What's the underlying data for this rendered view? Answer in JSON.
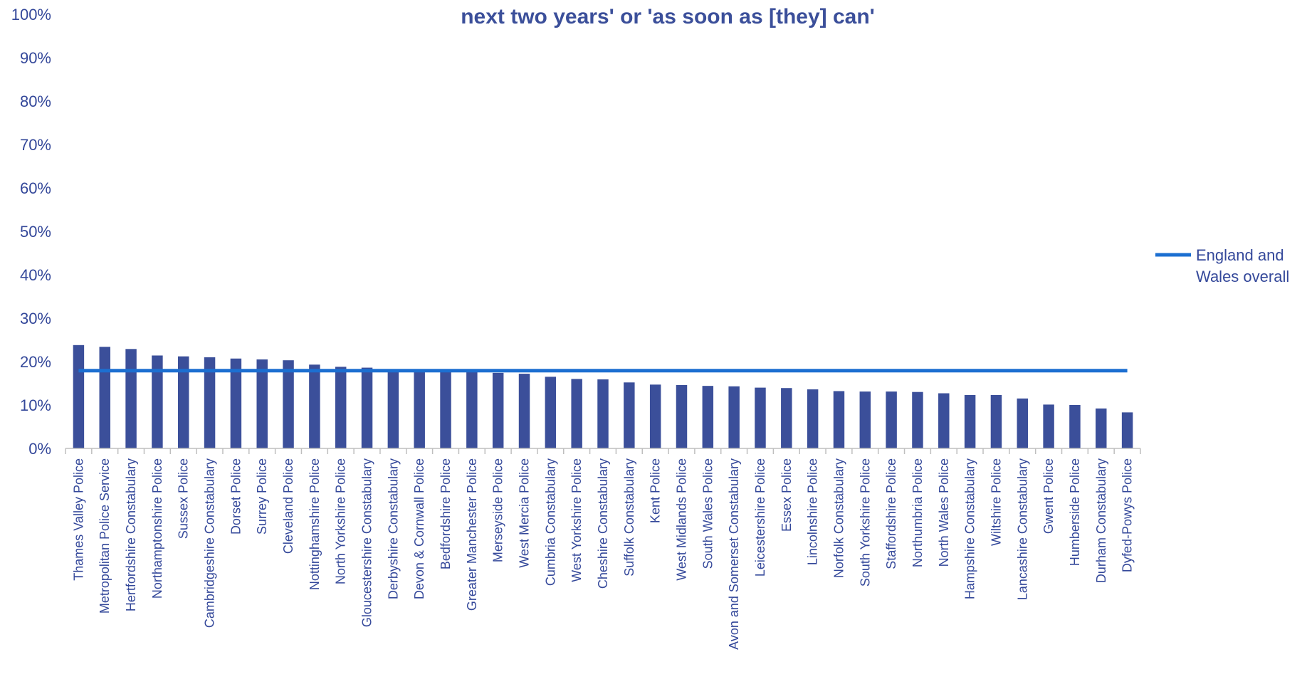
{
  "chart_data": {
    "type": "bar",
    "title": "next two years' or 'as soon as [they] can'",
    "xlabel": "",
    "ylabel": "",
    "ylim": [
      0,
      100
    ],
    "y_ticks": [
      "0%",
      "10%",
      "20%",
      "30%",
      "40%",
      "50%",
      "60%",
      "70%",
      "80%",
      "90%",
      "100%"
    ],
    "categories": [
      "Thames Valley Police",
      "Metropolitan Police Service",
      "Hertfordshire Constabulary",
      "Northamptonshire Police",
      "Sussex Police",
      "Cambridgeshire Constabulary",
      "Dorset Police",
      "Surrey Police",
      "Cleveland Police",
      "Nottinghamshire Police",
      "North Yorkshire Police",
      "Gloucestershire Constabulary",
      "Derbyshire Constabulary",
      "Devon & Cornwall Police",
      "Bedfordshire Police",
      "Greater Manchester Police",
      "Merseyside Police",
      "West Mercia Police",
      "Cumbria Constabulary",
      "West Yorkshire Police",
      "Cheshire Constabulary",
      "Suffolk Constabulary",
      "Kent Police",
      "West Midlands Police",
      "South Wales Police",
      "Avon and Somerset Constabulary",
      "Leicestershire Police",
      "Essex Police",
      "Lincolnshire Police",
      "Norfolk Constabulary",
      "South Yorkshire Police",
      "Staffordshire Police",
      "Northumbria Police",
      "North Wales Police",
      "Hampshire Constabulary",
      "Wiltshire Police",
      "Lancashire Constabulary",
      "Gwent Police",
      "Humberside Police",
      "Durham Constabulary",
      "Dyfed-Powys Police"
    ],
    "values": [
      23.8,
      23.4,
      22.9,
      21.4,
      21.2,
      21.0,
      20.7,
      20.5,
      20.3,
      19.3,
      18.8,
      18.6,
      18.1,
      18.0,
      17.8,
      17.7,
      17.4,
      17.2,
      16.5,
      16.0,
      15.9,
      15.2,
      14.7,
      14.6,
      14.4,
      14.3,
      14.0,
      13.9,
      13.6,
      13.2,
      13.1,
      13.1,
      13.0,
      12.7,
      12.3,
      12.3,
      11.5,
      10.1,
      10.0,
      9.2,
      8.3
    ],
    "series": [
      {
        "name": "",
        "type": "bar",
        "color": "#3b4f9a"
      },
      {
        "name": "England and Wales overall",
        "type": "line",
        "value": 17.9,
        "color": "#1c6fd1"
      }
    ],
    "legend": {
      "position": "right",
      "lines": [
        "England and",
        "Wales overall"
      ]
    },
    "grid": false
  }
}
